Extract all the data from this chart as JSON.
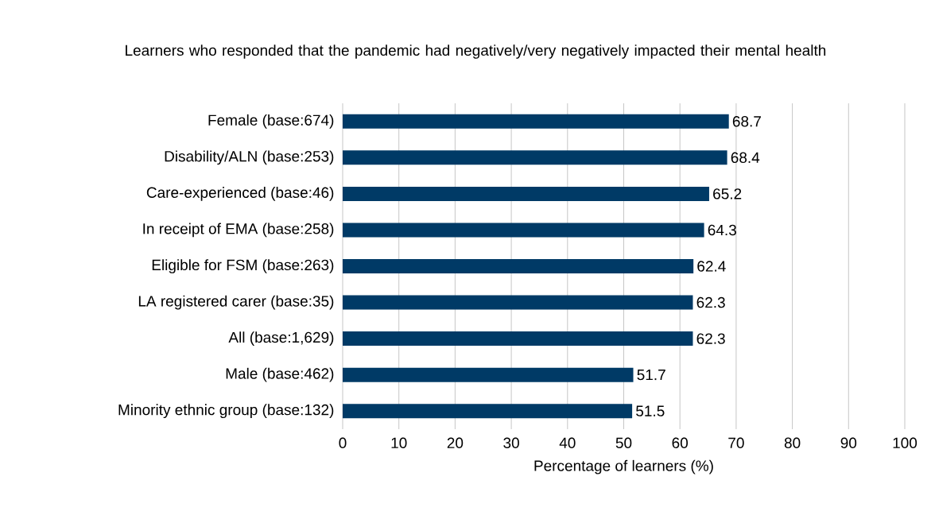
{
  "chart_data": {
    "type": "bar",
    "orientation": "horizontal",
    "title": "Learners who responded that the pandemic had negatively/very negatively impacted their mental health",
    "xlabel": "Percentage of learners (%)",
    "categories": [
      "Female (base:674)",
      "Disability/ALN (base:253)",
      "Care-experienced (base:46)",
      "In receipt of EMA (base:258)",
      "Eligible for FSM (base:263)",
      "LA registered carer (base:35)",
      "All (base:1,629)",
      "Male (base:462)",
      "Minority ethnic group (base:132)"
    ],
    "values": [
      68.7,
      68.4,
      65.2,
      64.3,
      62.4,
      62.3,
      62.3,
      51.7,
      51.5
    ],
    "color": "#003a66",
    "xlim": [
      0,
      100
    ],
    "xticks": [
      0,
      10,
      20,
      30,
      40,
      50,
      60,
      70,
      80,
      90,
      100
    ],
    "grid": "x",
    "data_labels": true
  }
}
